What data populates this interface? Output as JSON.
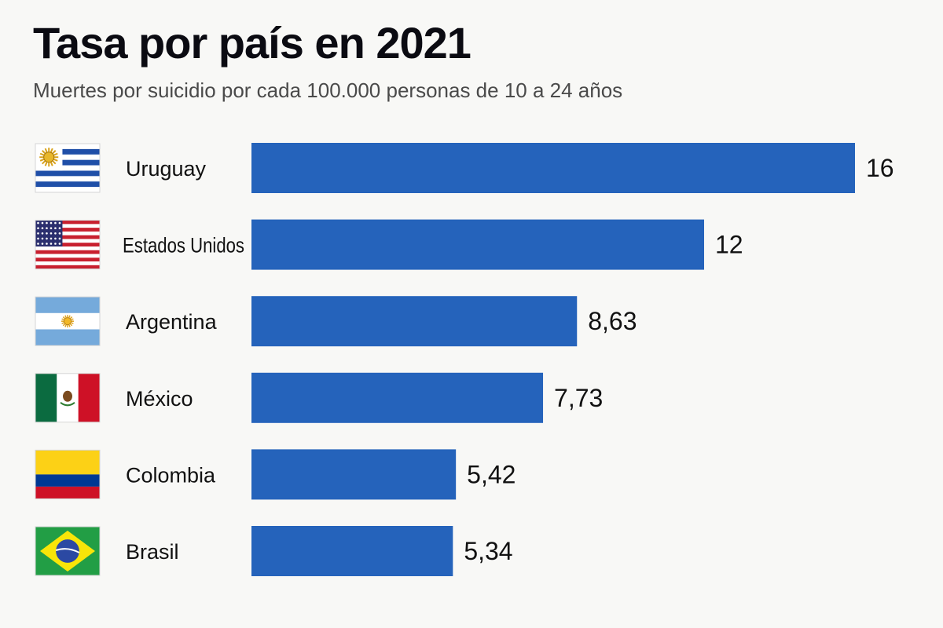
{
  "title": "Tasa por país en 2021",
  "subtitle": "Muertes por suicidio por cada 100.000 personas de 10 a 24 años",
  "colors": {
    "bar": "#2563bb",
    "background": "#f8f8f6"
  },
  "chart_data": {
    "type": "bar",
    "orientation": "horizontal",
    "title": "Tasa por país en 2021",
    "subtitle": "Muertes por suicidio por cada 100.000 personas de 10 a 24 años",
    "categories": [
      "Uruguay",
      "Estados Unidos",
      "Argentina",
      "México",
      "Colombia",
      "Brasil"
    ],
    "values": [
      16,
      12,
      8.63,
      7.73,
      5.42,
      5.34
    ],
    "value_labels": [
      "16",
      "12",
      "8,63",
      "7,73",
      "5,42",
      "5,34"
    ],
    "flags": [
      "uruguay-flag-icon",
      "usa-flag-icon",
      "argentina-flag-icon",
      "mexico-flag-icon",
      "colombia-flag-icon",
      "brazil-flag-icon"
    ],
    "xlim": [
      0,
      16
    ],
    "grid": false,
    "legend": "none"
  }
}
